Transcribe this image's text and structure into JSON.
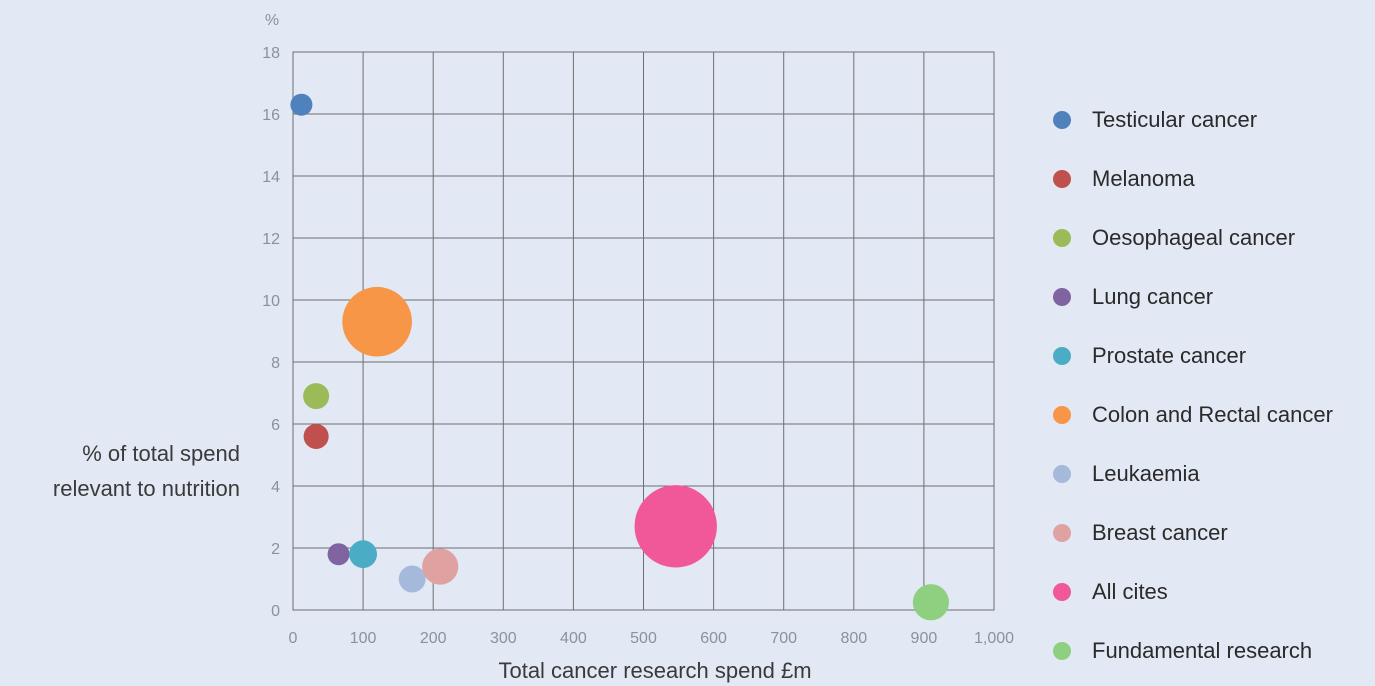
{
  "chart_data": {
    "type": "scatter",
    "title": "",
    "xlabel": "Total cancer research spend £m",
    "ylabel_lines": [
      "% of total spend",
      "relevant to nutrition"
    ],
    "y_unit": "%",
    "xlim": [
      0,
      1000
    ],
    "ylim": [
      0,
      18
    ],
    "x_ticks": [
      0,
      100,
      200,
      300,
      400,
      500,
      600,
      700,
      800,
      900,
      1000
    ],
    "x_tick_labels": [
      "0",
      "100",
      "200",
      "300",
      "400",
      "500",
      "600",
      "700",
      "800",
      "900",
      "1,000"
    ],
    "y_ticks": [
      0,
      2,
      4,
      6,
      8,
      10,
      12,
      14,
      16,
      18
    ],
    "y_tick_labels": [
      "0",
      "2",
      "4",
      "6",
      "8",
      "10",
      "12",
      "14",
      "16",
      "18"
    ],
    "grid": true,
    "legend_position": "right",
    "series": [
      {
        "name": "Testicular cancer",
        "color": "#4f81bd",
        "x": 12,
        "y": 16.3,
        "size": 1
      },
      {
        "name": "Melanoma",
        "color": "#c0504d",
        "x": 33,
        "y": 5.6,
        "size": 1.3
      },
      {
        "name": "Oesophageal cancer",
        "color": "#9bbb59",
        "x": 33,
        "y": 6.9,
        "size": 1.4
      },
      {
        "name": "Lung cancer",
        "color": "#8064a2",
        "x": 65,
        "y": 1.8,
        "size": 1
      },
      {
        "name": "Prostate cancer",
        "color": "#4bacc6",
        "x": 100,
        "y": 1.8,
        "size": 1.6
      },
      {
        "name": "Colon and Rectal cancer",
        "color": "#f79646",
        "x": 120,
        "y": 9.3,
        "size": 10
      },
      {
        "name": "Leukaemia",
        "color": "#a5b9db",
        "x": 170,
        "y": 1.0,
        "size": 1.5
      },
      {
        "name": "Breast cancer",
        "color": "#e0a2a1",
        "x": 210,
        "y": 1.4,
        "size": 2.7
      },
      {
        "name": "All cites",
        "color": "#f0589a",
        "x": 546,
        "y": 2.7,
        "size": 14
      },
      {
        "name": "Fundamental research",
        "color": "#8fd080",
        "x": 910,
        "y": 0.25,
        "size": 2.7
      }
    ]
  }
}
